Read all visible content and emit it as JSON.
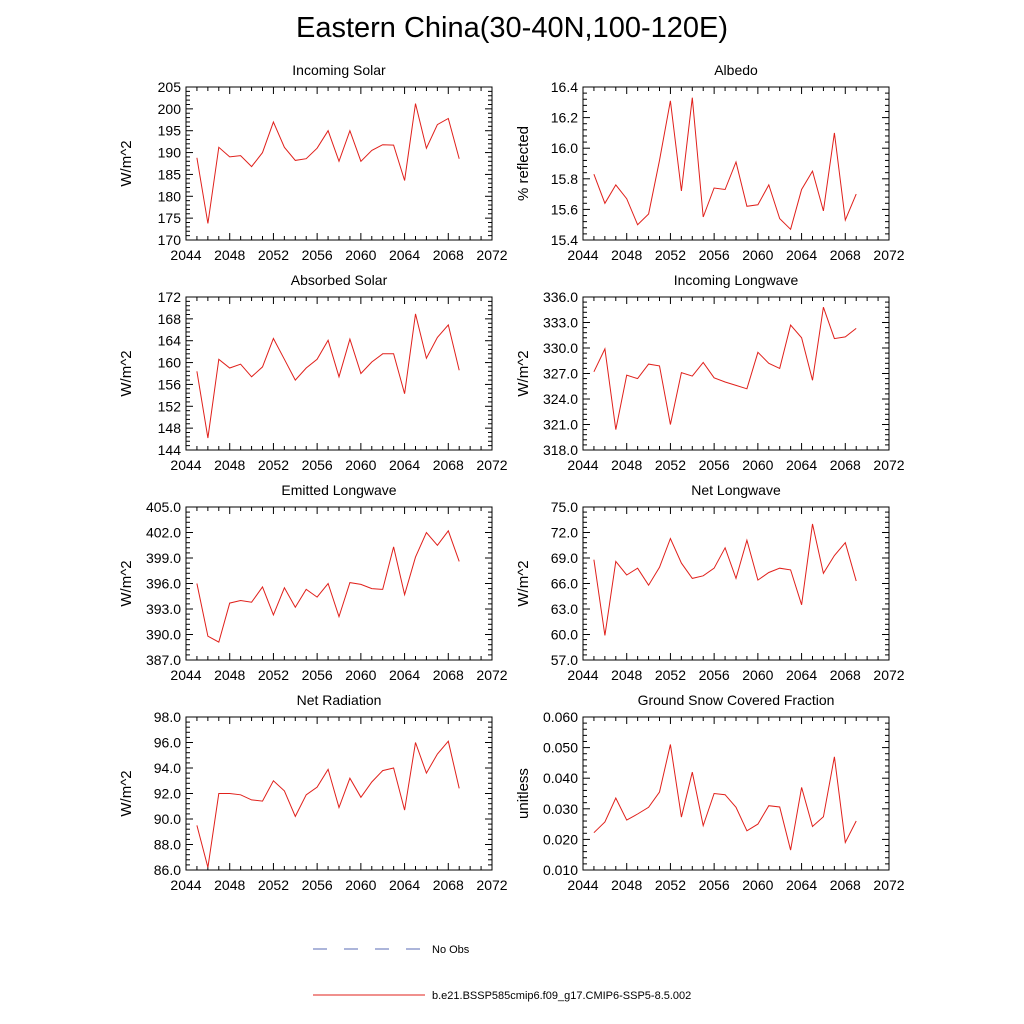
{
  "title": "Eastern China(30-40N,100-120E)",
  "series_color": "#e0201b",
  "legend": {
    "obs_label": "No Obs",
    "obs_color": "#5a6bb5",
    "model_label": "b.e21.BSSP585cmip6.f09_g17.CMIP6-SSP5-8.5.002",
    "model_color": "#e0201b"
  },
  "chart_data": [
    {
      "type": "line",
      "title": "Incoming Solar",
      "ylabel": "W/m^2",
      "xlim": [
        2044,
        2072
      ],
      "ylim": [
        170,
        205
      ],
      "yticks": [
        "170",
        "175",
        "180",
        "185",
        "190",
        "195",
        "200",
        "205"
      ],
      "xticks": [
        "2044",
        "2048",
        "2052",
        "2056",
        "2060",
        "2064",
        "2068",
        "2072"
      ],
      "x": [
        2045,
        2046,
        2047,
        2048,
        2049,
        2050,
        2051,
        2052,
        2053,
        2054,
        2055,
        2056,
        2057,
        2058,
        2059,
        2060,
        2061,
        2062,
        2063,
        2064,
        2065,
        2066,
        2067,
        2068,
        2069
      ],
      "values": [
        188.8,
        173.8,
        191.2,
        189.0,
        189.3,
        186.8,
        190.0,
        197.0,
        191.2,
        188.2,
        188.6,
        191.0,
        195.0,
        188.0,
        195.0,
        188.0,
        190.5,
        191.8,
        191.7,
        183.6,
        201.2,
        191.0,
        196.4,
        197.8,
        188.6
      ]
    },
    {
      "type": "line",
      "title": "Albedo",
      "ylabel": "% reflected",
      "xlim": [
        2044,
        2072
      ],
      "ylim": [
        15.4,
        16.4
      ],
      "yticks": [
        "15.4",
        "15.6",
        "15.8",
        "16.0",
        "16.2",
        "16.4"
      ],
      "xticks": [
        "2044",
        "2048",
        "2052",
        "2056",
        "2060",
        "2064",
        "2068",
        "2072"
      ],
      "x": [
        2045,
        2046,
        2047,
        2048,
        2049,
        2050,
        2051,
        2052,
        2053,
        2054,
        2055,
        2056,
        2057,
        2058,
        2059,
        2060,
        2061,
        2062,
        2063,
        2064,
        2065,
        2066,
        2067,
        2068,
        2069
      ],
      "values": [
        15.83,
        15.64,
        15.76,
        15.67,
        15.5,
        15.57,
        15.92,
        16.31,
        15.72,
        16.33,
        15.55,
        15.74,
        15.73,
        15.91,
        15.62,
        15.63,
        15.76,
        15.54,
        15.47,
        15.73,
        15.85,
        15.59,
        16.1,
        15.53,
        15.7
      ]
    },
    {
      "type": "line",
      "title": "Absorbed Solar",
      "ylabel": "W/m^2",
      "xlim": [
        2044,
        2072
      ],
      "ylim": [
        144,
        172
      ],
      "yticks": [
        "144",
        "148",
        "152",
        "156",
        "160",
        "164",
        "168",
        "172"
      ],
      "xticks": [
        "2044",
        "2048",
        "2052",
        "2056",
        "2060",
        "2064",
        "2068",
        "2072"
      ],
      "x": [
        2045,
        2046,
        2047,
        2048,
        2049,
        2050,
        2051,
        2052,
        2053,
        2054,
        2055,
        2056,
        2057,
        2058,
        2059,
        2060,
        2061,
        2062,
        2063,
        2064,
        2065,
        2066,
        2067,
        2068,
        2069
      ],
      "values": [
        158.4,
        146.2,
        160.6,
        159.0,
        159.7,
        157.4,
        159.2,
        164.4,
        160.6,
        156.8,
        159.0,
        160.6,
        164.1,
        157.4,
        164.3,
        158.0,
        160.1,
        161.6,
        161.6,
        154.3,
        168.9,
        160.8,
        164.6,
        166.9,
        158.6
      ]
    },
    {
      "type": "line",
      "title": "Incoming Longwave",
      "ylabel": "W/m^2",
      "xlim": [
        2044,
        2072
      ],
      "ylim": [
        318.0,
        336.0
      ],
      "yticks": [
        "318.0",
        "321.0",
        "324.0",
        "327.0",
        "330.0",
        "333.0",
        "336.0"
      ],
      "xticks": [
        "2044",
        "2048",
        "2052",
        "2056",
        "2060",
        "2064",
        "2068",
        "2072"
      ],
      "x": [
        2045,
        2046,
        2047,
        2048,
        2049,
        2050,
        2051,
        2052,
        2053,
        2054,
        2055,
        2056,
        2057,
        2058,
        2059,
        2060,
        2061,
        2062,
        2063,
        2064,
        2065,
        2066,
        2067,
        2068,
        2069
      ],
      "values": [
        327.2,
        329.9,
        320.4,
        326.8,
        326.4,
        328.1,
        327.9,
        321.0,
        327.1,
        326.7,
        328.3,
        326.5,
        326.0,
        325.6,
        325.2,
        329.5,
        328.2,
        327.6,
        332.7,
        331.2,
        326.2,
        334.8,
        331.1,
        331.3,
        332.3
      ]
    },
    {
      "type": "line",
      "title": "Emitted Longwave",
      "ylabel": "W/m^2",
      "xlim": [
        2044,
        2072
      ],
      "ylim": [
        387.0,
        405.0
      ],
      "yticks": [
        "387.0",
        "390.0",
        "393.0",
        "396.0",
        "399.0",
        "402.0",
        "405.0"
      ],
      "xticks": [
        "2044",
        "2048",
        "2052",
        "2056",
        "2060",
        "2064",
        "2068",
        "2072"
      ],
      "x": [
        2045,
        2046,
        2047,
        2048,
        2049,
        2050,
        2051,
        2052,
        2053,
        2054,
        2055,
        2056,
        2057,
        2058,
        2059,
        2060,
        2061,
        2062,
        2063,
        2064,
        2065,
        2066,
        2067,
        2068,
        2069
      ],
      "values": [
        396.0,
        389.8,
        389.1,
        393.7,
        394.0,
        393.8,
        395.6,
        392.3,
        395.5,
        393.2,
        395.3,
        394.4,
        396.0,
        392.1,
        396.1,
        395.9,
        395.4,
        395.3,
        400.3,
        394.7,
        399.1,
        402.0,
        400.5,
        402.2,
        398.6
      ]
    },
    {
      "type": "line",
      "title": "Net Longwave",
      "ylabel": "W/m^2",
      "xlim": [
        2044,
        2072
      ],
      "ylim": [
        57.0,
        75.0
      ],
      "yticks": [
        "57.0",
        "60.0",
        "63.0",
        "66.0",
        "69.0",
        "72.0",
        "75.0"
      ],
      "xticks": [
        "2044",
        "2048",
        "2052",
        "2056",
        "2060",
        "2064",
        "2068",
        "2072"
      ],
      "x": [
        2045,
        2046,
        2047,
        2048,
        2049,
        2050,
        2051,
        2052,
        2053,
        2054,
        2055,
        2056,
        2057,
        2058,
        2059,
        2060,
        2061,
        2062,
        2063,
        2064,
        2065,
        2066,
        2067,
        2068,
        2069
      ],
      "values": [
        68.8,
        59.9,
        68.6,
        67.0,
        67.8,
        65.8,
        67.9,
        71.3,
        68.4,
        66.6,
        66.9,
        67.8,
        70.2,
        66.6,
        71.1,
        66.4,
        67.3,
        67.8,
        67.6,
        63.5,
        73.0,
        67.2,
        69.3,
        70.8,
        66.3
      ]
    },
    {
      "type": "line",
      "title": "Net Radiation",
      "ylabel": "W/m^2",
      "xlim": [
        2044,
        2072
      ],
      "ylim": [
        86.0,
        98.0
      ],
      "yticks": [
        "86.0",
        "88.0",
        "90.0",
        "92.0",
        "94.0",
        "96.0",
        "98.0"
      ],
      "xticks": [
        "2044",
        "2048",
        "2052",
        "2056",
        "2060",
        "2064",
        "2068",
        "2072"
      ],
      "x": [
        2045,
        2046,
        2047,
        2048,
        2049,
        2050,
        2051,
        2052,
        2053,
        2054,
        2055,
        2056,
        2057,
        2058,
        2059,
        2060,
        2061,
        2062,
        2063,
        2064,
        2065,
        2066,
        2067,
        2068,
        2069
      ],
      "values": [
        89.5,
        86.2,
        92.0,
        92.0,
        91.9,
        91.5,
        91.4,
        93.0,
        92.2,
        90.2,
        91.9,
        92.5,
        93.9,
        90.9,
        93.2,
        91.7,
        92.9,
        93.8,
        94.0,
        90.7,
        96.0,
        93.6,
        95.1,
        96.1,
        92.4
      ]
    },
    {
      "type": "line",
      "title": "Ground Snow Covered Fraction",
      "ylabel": "unitless",
      "xlim": [
        2044,
        2072
      ],
      "ylim": [
        0.01,
        0.06
      ],
      "yticks": [
        "0.010",
        "0.020",
        "0.030",
        "0.040",
        "0.050",
        "0.060"
      ],
      "xticks": [
        "2044",
        "2048",
        "2052",
        "2056",
        "2060",
        "2064",
        "2068",
        "2072"
      ],
      "x": [
        2045,
        2046,
        2047,
        2048,
        2049,
        2050,
        2051,
        2052,
        2053,
        2054,
        2055,
        2056,
        2057,
        2058,
        2059,
        2060,
        2061,
        2062,
        2063,
        2064,
        2065,
        2066,
        2067,
        2068,
        2069
      ],
      "values": [
        0.0222,
        0.0257,
        0.0335,
        0.0263,
        0.0283,
        0.0305,
        0.0355,
        0.051,
        0.0273,
        0.042,
        0.0245,
        0.035,
        0.0346,
        0.0305,
        0.0228,
        0.025,
        0.031,
        0.0306,
        0.0165,
        0.037,
        0.0242,
        0.0274,
        0.047,
        0.019,
        0.026
      ]
    }
  ]
}
